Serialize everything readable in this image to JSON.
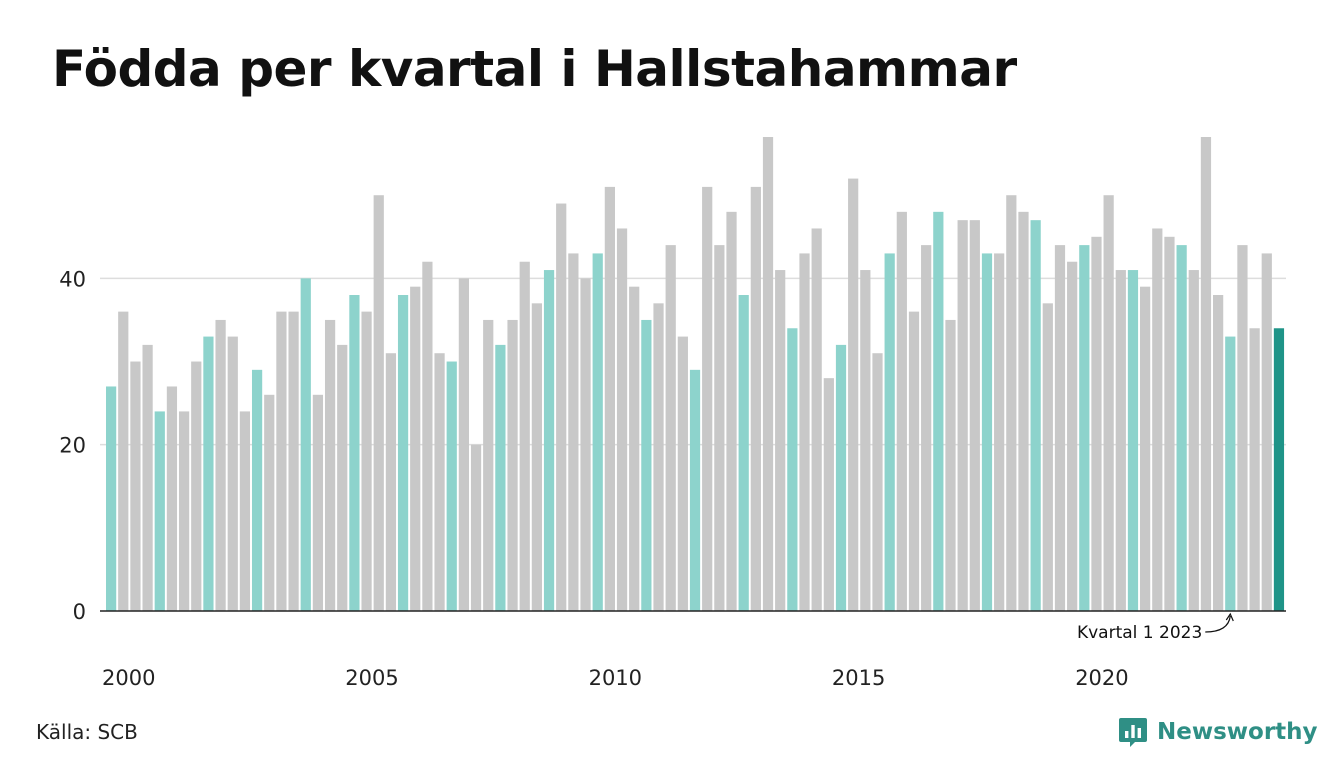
{
  "chart_data": {
    "type": "bar",
    "title": "Födda per kvartal i Hallstahammar",
    "xlabel": "",
    "ylabel": "",
    "ylim": [
      0,
      57
    ],
    "yticks": [
      0,
      20,
      40
    ],
    "xtick_labels": [
      "2000",
      "2005",
      "2010",
      "2015",
      "2020"
    ],
    "grid": true,
    "categories": [
      "2000 K1",
      "2000 K2",
      "2000 K3",
      "2000 K4",
      "2001 K1",
      "2001 K2",
      "2001 K3",
      "2001 K4",
      "2002 K1",
      "2002 K2",
      "2002 K3",
      "2002 K4",
      "2003 K1",
      "2003 K2",
      "2003 K3",
      "2003 K4",
      "2004 K1",
      "2004 K2",
      "2004 K3",
      "2004 K4",
      "2005 K1",
      "2005 K2",
      "2005 K3",
      "2005 K4",
      "2006 K1",
      "2006 K2",
      "2006 K3",
      "2006 K4",
      "2007 K1",
      "2007 K2",
      "2007 K3",
      "2007 K4",
      "2008 K1",
      "2008 K2",
      "2008 K3",
      "2008 K4",
      "2009 K1",
      "2009 K2",
      "2009 K3",
      "2009 K4",
      "2010 K1",
      "2010 K2",
      "2010 K3",
      "2010 K4",
      "2011 K1",
      "2011 K2",
      "2011 K3",
      "2011 K4",
      "2012 K1",
      "2012 K2",
      "2012 K3",
      "2012 K4",
      "2013 K1",
      "2013 K2",
      "2013 K3",
      "2013 K4",
      "2014 K1",
      "2014 K2",
      "2014 K3",
      "2014 K4",
      "2015 K1",
      "2015 K2",
      "2015 K3",
      "2015 K4",
      "2016 K1",
      "2016 K2",
      "2016 K3",
      "2016 K4",
      "2017 K1",
      "2017 K2",
      "2017 K3",
      "2017 K4",
      "2018 K1",
      "2018 K2",
      "2018 K3",
      "2018 K4",
      "2019 K1",
      "2019 K2",
      "2019 K3",
      "2019 K4",
      "2020 K1",
      "2020 K2",
      "2020 K3",
      "2020 K4",
      "2021 K1",
      "2021 K2",
      "2021 K3",
      "2021 K4",
      "2022 K1",
      "2022 K2",
      "2022 K3",
      "2022 K4",
      "2023 K1",
      "2023 K2",
      "2023 K3",
      "2023 K4",
      "2024 K1"
    ],
    "values": [
      27,
      36,
      30,
      32,
      24,
      27,
      24,
      30,
      33,
      35,
      33,
      24,
      29,
      26,
      36,
      36,
      40,
      26,
      35,
      32,
      38,
      36,
      50,
      31,
      38,
      39,
      42,
      31,
      30,
      40,
      20,
      35,
      32,
      35,
      42,
      37,
      41,
      49,
      43,
      40,
      43,
      51,
      46,
      39,
      35,
      37,
      44,
      33,
      29,
      51,
      44,
      48,
      38,
      51,
      57,
      41,
      34,
      43,
      46,
      28,
      32,
      52,
      41,
      31,
      43,
      48,
      36,
      44,
      48,
      35,
      47,
      47,
      43,
      43,
      50,
      48,
      47,
      37,
      44,
      42,
      44,
      45,
      50,
      41,
      41,
      39,
      46,
      45,
      44,
      41,
      57,
      38,
      33,
      44,
      34,
      43,
      34
    ],
    "colors": {
      "q1": "#8dd3cc",
      "other": "#c8c8c8",
      "latest": "#1f9488",
      "grid": "#dddddd",
      "axis": "#222222"
    },
    "annotation": {
      "text": "Kvartal 1 2023",
      "target": "2023 K1"
    }
  },
  "footer": {
    "source": "Källa: SCB",
    "brand": "Newsworthy"
  },
  "icons": {
    "brand": "newsworthy-logo-icon"
  }
}
